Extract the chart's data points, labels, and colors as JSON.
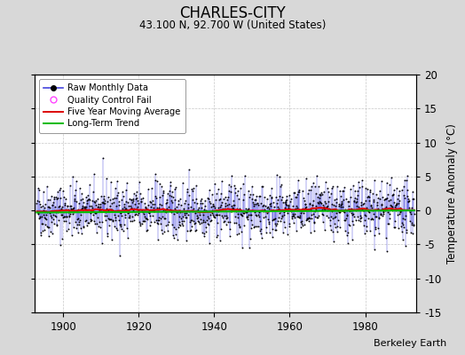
{
  "title": "CHARLES-CITY",
  "subtitle": "43.100 N, 92.700 W (United States)",
  "ylabel": "Temperature Anomaly (°C)",
  "credit": "Berkeley Earth",
  "year_start": 1893,
  "year_end": 1993,
  "ylim": [
    -15,
    20
  ],
  "yticks": [
    -15,
    -10,
    -5,
    0,
    5,
    10,
    15,
    20
  ],
  "xticks": [
    1900,
    1920,
    1940,
    1960,
    1980
  ],
  "bg_color": "#d8d8d8",
  "plot_bg_color": "#ffffff",
  "grid_color": "#b0b0b0",
  "raw_line_color": "#4444dd",
  "raw_dot_color": "#000000",
  "moving_avg_color": "#dd0000",
  "trend_color": "#00bb00",
  "qc_fail_color": "#ff44ff",
  "seed": 42,
  "n_months": 1188
}
